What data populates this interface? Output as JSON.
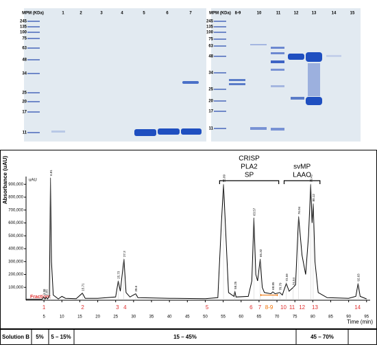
{
  "gels": [
    {
      "header": "MPM (KDa)",
      "lanes": [
        "1",
        "2",
        "3",
        "4",
        "5",
        "6",
        "7"
      ],
      "markers": [
        "245",
        "135",
        "100",
        "75",
        "63",
        "48",
        "34",
        "25",
        "20",
        "17",
        "11"
      ]
    },
    {
      "header": "MPM (KDa)",
      "lanes": [
        "8-9",
        "10",
        "11",
        "12",
        "13",
        "14",
        "15"
      ],
      "markers": [
        "245",
        "135",
        "100",
        "75",
        "63",
        "48",
        "34",
        "25",
        "20",
        "17",
        "11"
      ]
    }
  ],
  "chart_data": {
    "type": "line",
    "y_label": "Absorbance (uAU)",
    "y_unit": "uAU",
    "x_label": "Time (min)",
    "xlim": [
      0,
      96
    ],
    "xticks": [
      5,
      10,
      15,
      20,
      25,
      30,
      35,
      40,
      45,
      50,
      55,
      60,
      65,
      70,
      75,
      80,
      85,
      90,
      95
    ],
    "ylim": [
      0,
      960000
    ],
    "yticks": [
      {
        "value": 100000,
        "label": "100,000"
      },
      {
        "value": 200000,
        "label": "200,000"
      },
      {
        "value": 300000,
        "label": "300,000"
      },
      {
        "value": 400000,
        "label": "400,000"
      },
      {
        "value": 500000,
        "label": "500,000"
      },
      {
        "value": 600000,
        "label": "600,000"
      },
      {
        "value": 700000,
        "label": "700,000"
      },
      {
        "value": 800000,
        "label": "800,000"
      },
      {
        "value": 900000,
        "label": "900,000"
      }
    ],
    "series": [
      {
        "color": "#000000",
        "x": [
          0,
          4.5,
          4.96,
          5.3,
          5.65,
          6.0,
          6.5,
          6.81,
          7.1,
          7.6,
          9,
          10,
          11,
          14,
          15.71,
          16.5,
          20,
          25,
          25.73,
          26.3,
          27.3,
          27.9,
          29,
          30.6,
          31.2,
          40,
          50,
          53.5,
          54.5,
          55.09,
          55.6,
          56.5,
          58,
          58.25,
          58.6,
          62,
          63,
          63.57,
          64.1,
          64.6,
          65.32,
          65.9,
          66.5,
          68.3,
          68.85,
          69.5,
          70.79,
          71.5,
          72.59,
          73.4,
          74.54,
          75.2,
          76.04,
          77,
          78,
          78.8,
          79.42,
          79.8,
          80.12,
          80.6,
          81.5,
          84,
          90,
          92,
          92.63,
          93.2,
          95
        ],
        "values": [
          8000,
          8000,
          25000,
          10000,
          22000,
          10000,
          30000,
          950000,
          300000,
          40000,
          10000,
          30000,
          15000,
          12000,
          55000,
          15000,
          15000,
          25000,
          150000,
          70000,
          320000,
          60000,
          25000,
          50000,
          20000,
          15000,
          12000,
          20000,
          600000,
          900000,
          600000,
          60000,
          30000,
          70000,
          25000,
          30000,
          150000,
          640000,
          200000,
          150000,
          320000,
          100000,
          60000,
          50000,
          65000,
          50000,
          60000,
          40000,
          130000,
          70000,
          100000,
          120000,
          650000,
          350000,
          200000,
          500000,
          900000,
          600000,
          750000,
          300000,
          60000,
          20000,
          15000,
          30000,
          130000,
          30000,
          10000
        ]
      }
    ],
    "peaks": {
      "x": [
        4.96,
        5.65,
        6.81,
        15.71,
        25.73,
        27.3,
        30.6,
        55.09,
        58.25,
        63.57,
        65.32,
        68.85,
        70.79,
        72.59,
        74.54,
        76.04,
        79.42,
        80.12,
        92.63
      ],
      "values": [
        25000,
        22000,
        950000,
        55000,
        150000,
        320000,
        50000,
        900000,
        70000,
        640000,
        320000,
        65000,
        60000,
        130000,
        100000,
        650000,
        900000,
        750000,
        130000
      ]
    },
    "fraction_label": "Fraction:",
    "fractions": {
      "labels": [
        "1",
        "2",
        "3",
        "4",
        "5",
        "6",
        "7",
        "8-9",
        "10",
        "11",
        "12",
        "13",
        "14"
      ],
      "x": [
        5,
        15.8,
        25.5,
        27.6,
        50.5,
        62.8,
        65.2,
        67.8,
        71.8,
        74.2,
        77,
        80.6,
        92.5
      ],
      "colors": [
        "#e03030",
        "#e03030",
        "#e03030",
        "#e03030",
        "#e03030",
        "#e03030",
        "#e03030",
        "#f07000",
        "#e03030",
        "#e03030",
        "#e03030",
        "#e03030",
        "#e03030"
      ]
    },
    "groups": [
      {
        "lines": [
          "CRISP",
          "PLA2",
          "SP"
        ],
        "start": 54,
        "end": 70.5
      },
      {
        "lines": [
          "svMP",
          "LAAO"
        ],
        "start": 72,
        "end": 82
      }
    ]
  },
  "solution_table": {
    "header": "Solution B",
    "cells": [
      "5%",
      "5 – 15%",
      "15 – 45%",
      "45 – 70%"
    ]
  }
}
